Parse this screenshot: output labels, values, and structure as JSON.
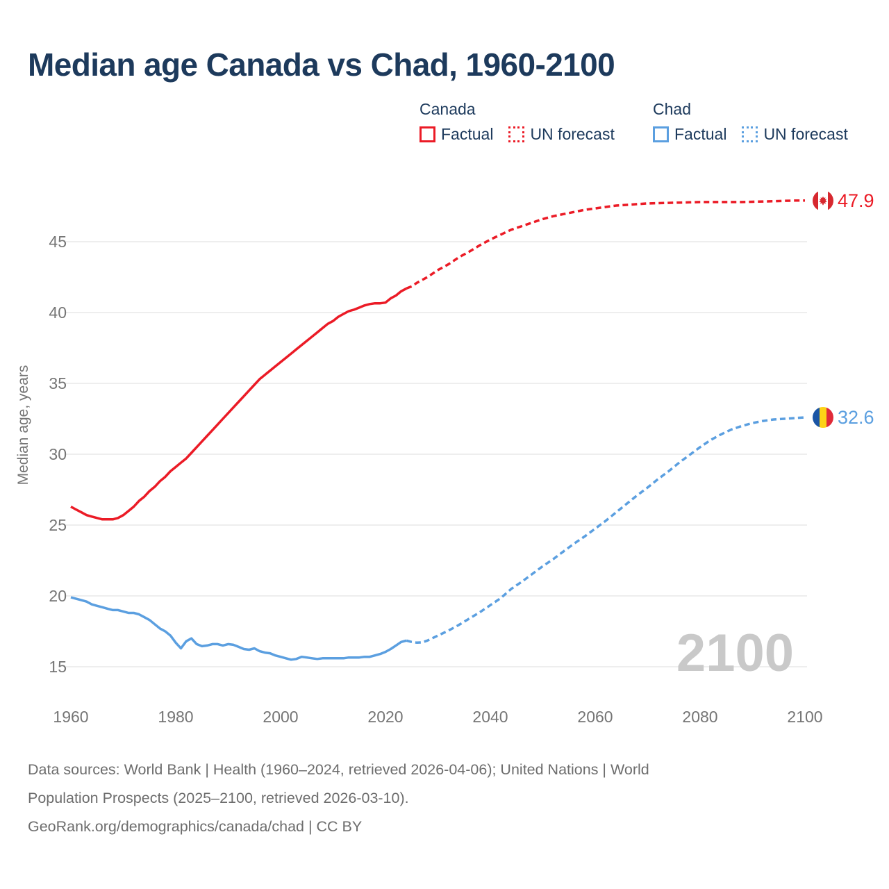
{
  "header": {
    "title": "Median age Canada vs Chad, 1960-2100"
  },
  "legend": {
    "groups": [
      {
        "id": "canada",
        "label": "Canada",
        "items": [
          {
            "label": "Factual",
            "style": "solid"
          },
          {
            "label": "UN forecast",
            "style": "dotted"
          }
        ]
      },
      {
        "id": "chad",
        "label": "Chad",
        "items": [
          {
            "label": "Factual",
            "style": "solid"
          },
          {
            "label": "UN forecast",
            "style": "dotted"
          }
        ]
      }
    ]
  },
  "footer": {
    "lines": [
      "Data sources: World Bank | Health (1960–2024, retrieved 2026-04-06); United Nations | World",
      "Population Prospects (2025–2100, retrieved 2026-03-10).",
      "GeoRank.org/demographics/canada/chad | CC BY"
    ]
  },
  "colors": {
    "canada": "#eb1b26",
    "chad": "#5b9fe0",
    "title_text": "#1d3a5c",
    "legend_text": "#1d3a5c",
    "axis_text": "#757575",
    "grid": "#e9e9e9",
    "watermark": "#c9c9c9",
    "footer_text": "#6d6d6d",
    "flag_canada_red": "#d7282f",
    "flag_white": "#ffffff",
    "flag_chad_blue": "#1a55a5",
    "flag_chad_yellow": "#fdd216",
    "flag_chad_red": "#e02a38"
  },
  "chart_data": {
    "type": "line",
    "title": "Median age Canada vs Chad, 1960-2100",
    "xlabel": "",
    "ylabel": "Median age, years",
    "xlim": [
      1960,
      2100
    ],
    "ylim": [
      15,
      45
    ],
    "xticks": [
      1960,
      1980,
      2000,
      2020,
      2040,
      2060,
      2080,
      2100
    ],
    "yticks": [
      15,
      20,
      25,
      30,
      35,
      40,
      45
    ],
    "grid": "horizontal",
    "legend_position": "top-right",
    "watermark": "2100",
    "series": [
      {
        "id": "canada-factual",
        "name": "Canada Factual",
        "color": "canada",
        "style": "solid",
        "points": [
          [
            1960,
            26.3
          ],
          [
            1961,
            26.1
          ],
          [
            1962,
            25.9
          ],
          [
            1963,
            25.7
          ],
          [
            1964,
            25.6
          ],
          [
            1965,
            25.5
          ],
          [
            1966,
            25.4
          ],
          [
            1967,
            25.4
          ],
          [
            1968,
            25.4
          ],
          [
            1969,
            25.5
          ],
          [
            1970,
            25.7
          ],
          [
            1971,
            26.0
          ],
          [
            1972,
            26.3
          ],
          [
            1973,
            26.7
          ],
          [
            1974,
            27.0
          ],
          [
            1975,
            27.4
          ],
          [
            1976,
            27.7
          ],
          [
            1977,
            28.1
          ],
          [
            1978,
            28.4
          ],
          [
            1979,
            28.8
          ],
          [
            1980,
            29.1
          ],
          [
            1981,
            29.4
          ],
          [
            1982,
            29.7
          ],
          [
            1983,
            30.1
          ],
          [
            1984,
            30.5
          ],
          [
            1985,
            30.9
          ],
          [
            1986,
            31.3
          ],
          [
            1987,
            31.7
          ],
          [
            1988,
            32.1
          ],
          [
            1989,
            32.5
          ],
          [
            1990,
            32.9
          ],
          [
            1991,
            33.3
          ],
          [
            1992,
            33.7
          ],
          [
            1993,
            34.1
          ],
          [
            1994,
            34.5
          ],
          [
            1995,
            34.9
          ],
          [
            1996,
            35.3
          ],
          [
            1997,
            35.6
          ],
          [
            1998,
            35.9
          ],
          [
            1999,
            36.2
          ],
          [
            2000,
            36.5
          ],
          [
            2001,
            36.8
          ],
          [
            2002,
            37.1
          ],
          [
            2003,
            37.4
          ],
          [
            2004,
            37.7
          ],
          [
            2005,
            38.0
          ],
          [
            2006,
            38.3
          ],
          [
            2007,
            38.6
          ],
          [
            2008,
            38.9
          ],
          [
            2009,
            39.2
          ],
          [
            2010,
            39.4
          ],
          [
            2011,
            39.7
          ],
          [
            2012,
            39.9
          ],
          [
            2013,
            40.1
          ],
          [
            2014,
            40.2
          ],
          [
            2015,
            40.35
          ],
          [
            2016,
            40.5
          ],
          [
            2017,
            40.6
          ],
          [
            2018,
            40.65
          ],
          [
            2019,
            40.65
          ],
          [
            2020,
            40.7
          ],
          [
            2021,
            41.0
          ],
          [
            2022,
            41.2
          ],
          [
            2023,
            41.5
          ],
          [
            2024,
            41.7
          ]
        ]
      },
      {
        "id": "canada-un-forecast",
        "name": "Canada UN forecast",
        "color": "canada",
        "style": "dashed",
        "points": [
          [
            2024,
            41.7
          ],
          [
            2025,
            41.85
          ],
          [
            2026,
            42.1
          ],
          [
            2028,
            42.5
          ],
          [
            2030,
            43.0
          ],
          [
            2032,
            43.4
          ],
          [
            2034,
            43.9
          ],
          [
            2036,
            44.3
          ],
          [
            2038,
            44.75
          ],
          [
            2040,
            45.15
          ],
          [
            2042,
            45.5
          ],
          [
            2044,
            45.85
          ],
          [
            2046,
            46.1
          ],
          [
            2048,
            46.35
          ],
          [
            2050,
            46.6
          ],
          [
            2052,
            46.8
          ],
          [
            2054,
            46.95
          ],
          [
            2056,
            47.1
          ],
          [
            2058,
            47.25
          ],
          [
            2060,
            47.35
          ],
          [
            2062,
            47.45
          ],
          [
            2064,
            47.55
          ],
          [
            2066,
            47.6
          ],
          [
            2068,
            47.65
          ],
          [
            2070,
            47.7
          ],
          [
            2072,
            47.72
          ],
          [
            2074,
            47.74
          ],
          [
            2076,
            47.76
          ],
          [
            2078,
            47.78
          ],
          [
            2080,
            47.8
          ],
          [
            2082,
            47.8
          ],
          [
            2084,
            47.8
          ],
          [
            2086,
            47.8
          ],
          [
            2088,
            47.8
          ],
          [
            2090,
            47.82
          ],
          [
            2092,
            47.84
          ],
          [
            2094,
            47.86
          ],
          [
            2096,
            47.88
          ],
          [
            2098,
            47.9
          ],
          [
            2100,
            47.9
          ]
        ]
      },
      {
        "id": "chad-factual",
        "name": "Chad Factual",
        "color": "chad",
        "style": "solid",
        "points": [
          [
            1960,
            19.9
          ],
          [
            1961,
            19.8
          ],
          [
            1962,
            19.7
          ],
          [
            1963,
            19.6
          ],
          [
            1964,
            19.4
          ],
          [
            1965,
            19.3
          ],
          [
            1966,
            19.2
          ],
          [
            1967,
            19.1
          ],
          [
            1968,
            19.0
          ],
          [
            1969,
            19.0
          ],
          [
            1970,
            18.9
          ],
          [
            1971,
            18.8
          ],
          [
            1972,
            18.8
          ],
          [
            1973,
            18.7
          ],
          [
            1974,
            18.5
          ],
          [
            1975,
            18.3
          ],
          [
            1976,
            18.0
          ],
          [
            1977,
            17.7
          ],
          [
            1978,
            17.5
          ],
          [
            1979,
            17.2
          ],
          [
            1980,
            16.7
          ],
          [
            1981,
            16.3
          ],
          [
            1982,
            16.8
          ],
          [
            1983,
            17.0
          ],
          [
            1984,
            16.6
          ],
          [
            1985,
            16.45
          ],
          [
            1986,
            16.5
          ],
          [
            1987,
            16.6
          ],
          [
            1988,
            16.6
          ],
          [
            1989,
            16.5
          ],
          [
            1990,
            16.6
          ],
          [
            1991,
            16.55
          ],
          [
            1992,
            16.4
          ],
          [
            1993,
            16.25
          ],
          [
            1994,
            16.2
          ],
          [
            1995,
            16.3
          ],
          [
            1996,
            16.1
          ],
          [
            1997,
            16.0
          ],
          [
            1998,
            15.95
          ],
          [
            1999,
            15.8
          ],
          [
            2000,
            15.7
          ],
          [
            2001,
            15.6
          ],
          [
            2002,
            15.5
          ],
          [
            2003,
            15.55
          ],
          [
            2004,
            15.7
          ],
          [
            2005,
            15.65
          ],
          [
            2006,
            15.6
          ],
          [
            2007,
            15.55
          ],
          [
            2008,
            15.6
          ],
          [
            2009,
            15.6
          ],
          [
            2010,
            15.6
          ],
          [
            2011,
            15.6
          ],
          [
            2012,
            15.6
          ],
          [
            2013,
            15.65
          ],
          [
            2014,
            15.65
          ],
          [
            2015,
            15.65
          ],
          [
            2016,
            15.7
          ],
          [
            2017,
            15.7
          ],
          [
            2018,
            15.8
          ],
          [
            2019,
            15.9
          ],
          [
            2020,
            16.05
          ],
          [
            2021,
            16.25
          ],
          [
            2022,
            16.5
          ],
          [
            2023,
            16.75
          ],
          [
            2024,
            16.85
          ]
        ]
      },
      {
        "id": "chad-un-forecast",
        "name": "Chad UN forecast",
        "color": "chad",
        "style": "dashed",
        "points": [
          [
            2024,
            16.85
          ],
          [
            2025,
            16.75
          ],
          [
            2026,
            16.7
          ],
          [
            2027,
            16.72
          ],
          [
            2028,
            16.85
          ],
          [
            2030,
            17.2
          ],
          [
            2032,
            17.55
          ],
          [
            2034,
            17.95
          ],
          [
            2036,
            18.4
          ],
          [
            2038,
            18.85
          ],
          [
            2040,
            19.35
          ],
          [
            2042,
            19.85
          ],
          [
            2044,
            20.5
          ],
          [
            2046,
            21.0
          ],
          [
            2048,
            21.55
          ],
          [
            2050,
            22.1
          ],
          [
            2052,
            22.6
          ],
          [
            2054,
            23.15
          ],
          [
            2056,
            23.7
          ],
          [
            2058,
            24.2
          ],
          [
            2060,
            24.75
          ],
          [
            2062,
            25.3
          ],
          [
            2064,
            25.9
          ],
          [
            2066,
            26.5
          ],
          [
            2068,
            27.1
          ],
          [
            2070,
            27.65
          ],
          [
            2072,
            28.25
          ],
          [
            2074,
            28.8
          ],
          [
            2076,
            29.4
          ],
          [
            2078,
            29.95
          ],
          [
            2080,
            30.5
          ],
          [
            2082,
            31.0
          ],
          [
            2084,
            31.4
          ],
          [
            2086,
            31.75
          ],
          [
            2088,
            32.0
          ],
          [
            2090,
            32.2
          ],
          [
            2092,
            32.35
          ],
          [
            2094,
            32.45
          ],
          [
            2096,
            32.5
          ],
          [
            2098,
            32.55
          ],
          [
            2100,
            32.6
          ]
        ]
      }
    ],
    "end_labels": [
      {
        "series": "canada-un-forecast",
        "year": 2100,
        "value": "47.9",
        "flag": "canada-flag"
      },
      {
        "series": "chad-un-forecast",
        "year": 2100,
        "value": "32.6",
        "flag": "chad-flag"
      }
    ]
  }
}
